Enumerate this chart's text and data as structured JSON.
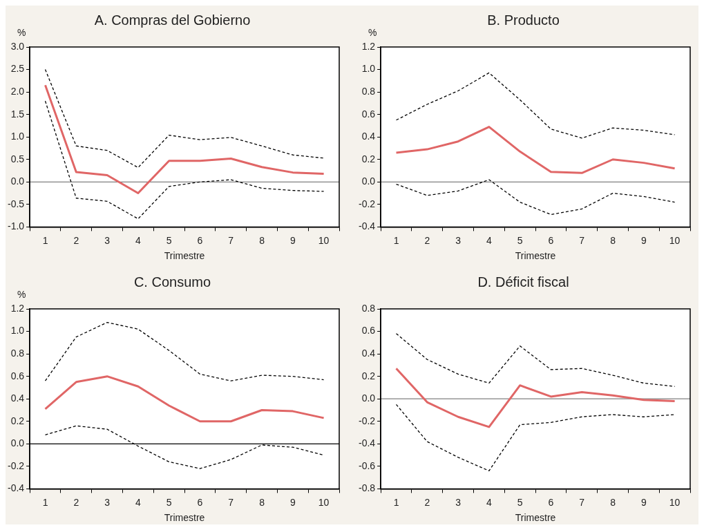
{
  "chart_data": [
    {
      "type": "line",
      "title": "A. Compras del Gobierno",
      "xlabel": "Trimestre",
      "ylabel": "%",
      "categories": [
        "1",
        "2",
        "3",
        "4",
        "5",
        "6",
        "7",
        "8",
        "9",
        "10"
      ],
      "series": [
        {
          "color": "#e06666",
          "line_style": "solid",
          "values": [
            2.15,
            0.22,
            0.15,
            -0.25,
            0.47,
            0.47,
            0.52,
            0.33,
            0.21,
            0.18
          ]
        },
        {
          "color": "#000000",
          "line_style": "dashed",
          "values": [
            2.5,
            0.8,
            0.7,
            0.32,
            1.04,
            0.94,
            0.99,
            0.8,
            0.6,
            0.53
          ]
        },
        {
          "color": "#000000",
          "line_style": "dashed",
          "values": [
            1.8,
            -0.36,
            -0.43,
            -0.82,
            -0.1,
            0.0,
            0.05,
            -0.14,
            -0.19,
            -0.21
          ]
        }
      ],
      "ylim": [
        -1,
        3
      ],
      "yticks": [
        {
          "value": -1,
          "label": "-1.0"
        },
        {
          "value": -0.5,
          "label": "-0.5"
        },
        {
          "value": 0,
          "label": "0.0"
        },
        {
          "value": 0.5,
          "label": "0.5"
        },
        {
          "value": 1,
          "label": "1.0"
        },
        {
          "value": 1.5,
          "label": "1.5"
        },
        {
          "value": 2,
          "label": "2.0"
        },
        {
          "value": 2.5,
          "label": "2.5"
        },
        {
          "value": 3,
          "label": "3.0"
        }
      ],
      "ref_lines": [
        {
          "axis": "y",
          "value": 0,
          "color": "#808080"
        }
      ],
      "grid": false,
      "legend": false,
      "marker": "none"
    },
    {
      "type": "line",
      "title": "B. Producto",
      "xlabel": "Trimestre",
      "ylabel": "%",
      "categories": [
        "1",
        "2",
        "3",
        "4",
        "5",
        "6",
        "7",
        "8",
        "9",
        "10"
      ],
      "series": [
        {
          "color": "#e06666",
          "line_style": "solid",
          "values": [
            0.26,
            0.29,
            0.36,
            0.49,
            0.27,
            0.09,
            0.08,
            0.2,
            0.17,
            0.12
          ]
        },
        {
          "color": "#000000",
          "line_style": "dashed",
          "values": [
            0.55,
            0.69,
            0.81,
            0.97,
            0.73,
            0.47,
            0.39,
            0.48,
            0.46,
            0.42
          ]
        },
        {
          "color": "#000000",
          "line_style": "dashed",
          "values": [
            -0.02,
            -0.12,
            -0.08,
            0.02,
            -0.18,
            -0.29,
            -0.24,
            -0.1,
            -0.13,
            -0.18
          ]
        }
      ],
      "ylim": [
        -0.4,
        1.2
      ],
      "yticks": [
        {
          "value": -0.4,
          "label": "-0.4"
        },
        {
          "value": -0.2,
          "label": "-0.2"
        },
        {
          "value": 0,
          "label": "0.0"
        },
        {
          "value": 0.2,
          "label": "0.2"
        },
        {
          "value": 0.4,
          "label": "0.4"
        },
        {
          "value": 0.6,
          "label": "0.6"
        },
        {
          "value": 0.8,
          "label": "0.8"
        },
        {
          "value": 1,
          "label": "1.0"
        },
        {
          "value": 1.2,
          "label": "1.2"
        }
      ],
      "ref_lines": [
        {
          "axis": "y",
          "value": 0,
          "color": "#808080"
        }
      ],
      "grid": false,
      "legend": false,
      "marker": "none"
    },
    {
      "type": "line",
      "title": "C. Consumo",
      "xlabel": "Trimestre",
      "ylabel": "%",
      "categories": [
        "1",
        "2",
        "3",
        "4",
        "5",
        "6",
        "7",
        "8",
        "9",
        "10"
      ],
      "series": [
        {
          "color": "#e06666",
          "line_style": "solid",
          "values": [
            0.31,
            0.55,
            0.6,
            0.51,
            0.34,
            0.2,
            0.2,
            0.3,
            0.29,
            0.23
          ]
        },
        {
          "color": "#000000",
          "line_style": "dashed",
          "values": [
            0.56,
            0.95,
            1.08,
            1.02,
            0.83,
            0.62,
            0.56,
            0.61,
            0.6,
            0.57
          ]
        },
        {
          "color": "#000000",
          "line_style": "dashed",
          "values": [
            0.08,
            0.16,
            0.13,
            -0.02,
            -0.16,
            -0.22,
            -0.14,
            -0.01,
            -0.03,
            -0.1
          ]
        }
      ],
      "ylim": [
        -0.4,
        1.2
      ],
      "yticks": [
        {
          "value": -0.4,
          "label": "-0.4"
        },
        {
          "value": -0.2,
          "label": "-0.2"
        },
        {
          "value": 0,
          "label": "0.0"
        },
        {
          "value": 0.2,
          "label": "0.2"
        },
        {
          "value": 0.4,
          "label": "0.4"
        },
        {
          "value": 0.6,
          "label": "0.6"
        },
        {
          "value": 0.8,
          "label": "0.8"
        },
        {
          "value": 1,
          "label": "1.0"
        },
        {
          "value": 1.2,
          "label": "1.2"
        }
      ],
      "ref_lines": [
        {
          "axis": "y",
          "value": 0,
          "color": "#000000"
        }
      ],
      "grid": false,
      "legend": false,
      "marker": "none"
    },
    {
      "type": "line",
      "title": "D. Déficit fiscal",
      "xlabel": "Trimestre",
      "categories": [
        "1",
        "2",
        "3",
        "4",
        "5",
        "6",
        "7",
        "8",
        "9",
        "10"
      ],
      "series": [
        {
          "color": "#e06666",
          "line_style": "solid",
          "values": [
            0.27,
            -0.03,
            -0.16,
            -0.25,
            0.12,
            0.02,
            0.06,
            0.03,
            -0.01,
            -0.02
          ]
        },
        {
          "color": "#000000",
          "line_style": "dashed",
          "values": [
            0.58,
            0.35,
            0.22,
            0.14,
            0.47,
            0.26,
            0.27,
            0.21,
            0.14,
            0.11
          ]
        },
        {
          "color": "#000000",
          "line_style": "dashed",
          "values": [
            -0.05,
            -0.38,
            -0.52,
            -0.64,
            -0.23,
            -0.21,
            -0.16,
            -0.14,
            -0.16,
            -0.14
          ]
        }
      ],
      "ylim": [
        -0.8,
        0.8
      ],
      "yticks": [
        {
          "value": -0.8,
          "label": "-0.8"
        },
        {
          "value": -0.6,
          "label": "-0.6"
        },
        {
          "value": -0.4,
          "label": "-0.4"
        },
        {
          "value": -0.2,
          "label": "-0.2"
        },
        {
          "value": 0,
          "label": "0.0"
        },
        {
          "value": 0.2,
          "label": "0.2"
        },
        {
          "value": 0.4,
          "label": "0.4"
        },
        {
          "value": 0.6,
          "label": "0.6"
        },
        {
          "value": 0.8,
          "label": "0.8"
        }
      ],
      "ref_lines": [
        {
          "axis": "y",
          "value": 0,
          "color": "#808080"
        }
      ],
      "grid": false,
      "legend": false,
      "marker": "none"
    }
  ]
}
